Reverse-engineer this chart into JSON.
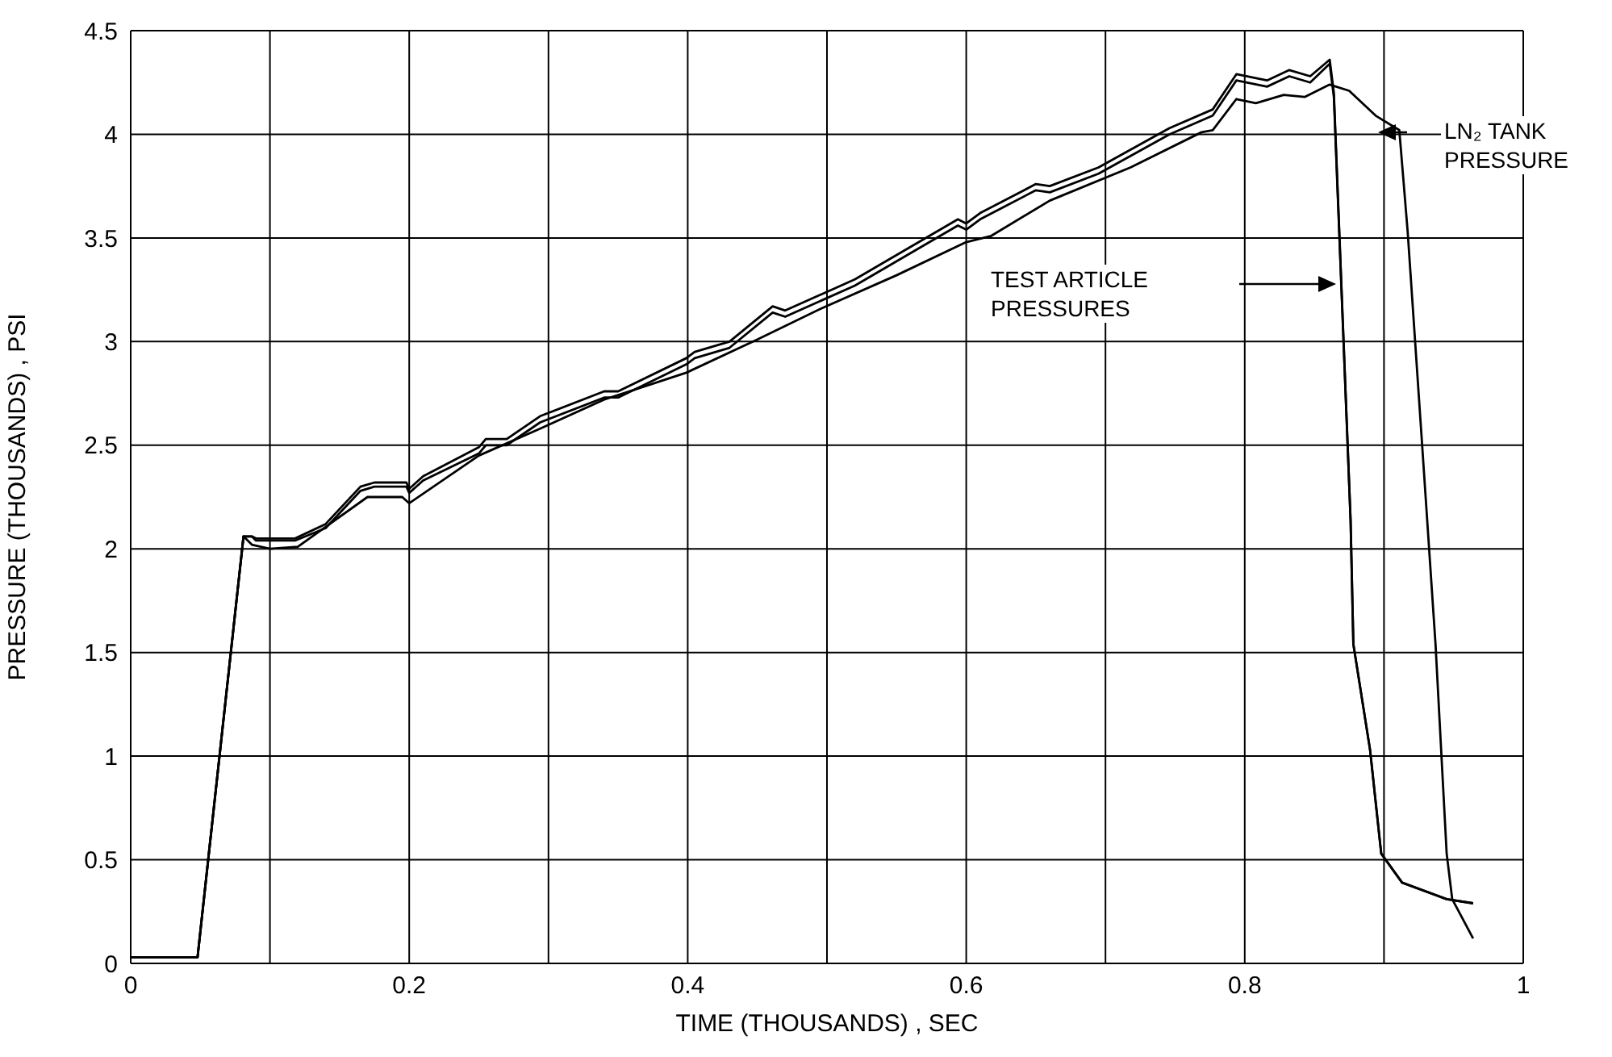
{
  "chart_data": {
    "type": "line",
    "xlabel": "TIME (THOUSANDS) , SEC",
    "ylabel": "PRESSURE (THOUSANDS) , PSI",
    "xlim": [
      0,
      1
    ],
    "ylim": [
      0,
      4.5
    ],
    "xticks": [
      0,
      {
        "value": 0.1,
        "label": null
      },
      0.2,
      {
        "value": 0.3,
        "label": null
      },
      0.4,
      {
        "value": 0.5,
        "label": null
      },
      0.6,
      {
        "value": 0.7,
        "label": null
      },
      0.8,
      {
        "value": 0.9,
        "label": null
      },
      1
    ],
    "yticks": [
      0,
      0.5,
      1,
      1.5,
      2,
      2.5,
      3,
      3.5,
      4,
      4.5
    ],
    "grid": true,
    "marker": "none",
    "line_style": "solid",
    "series": [
      {
        "color": "#000000",
        "x": [
          0,
          0.048,
          0.081,
          0.087,
          0.09,
          0.118,
          0.14,
          0.165,
          0.175,
          0.198,
          0.2,
          0.21,
          0.25,
          0.255,
          0.27,
          0.294,
          0.34,
          0.35,
          0.399,
          0.405,
          0.43,
          0.461,
          0.47,
          0.52,
          0.594,
          0.6,
          0.61,
          0.65,
          0.66,
          0.695,
          0.746,
          0.777,
          0.794,
          0.816,
          0.832,
          0.847,
          0.861,
          0.864,
          0.876,
          0.878,
          0.89,
          0.898,
          0.913,
          0.945,
          0.964
        ],
        "values": [
          0.03,
          0.03,
          2.06,
          2.06,
          2.05,
          2.05,
          2.12,
          2.3,
          2.32,
          2.32,
          2.29,
          2.35,
          2.49,
          2.53,
          2.53,
          2.64,
          2.76,
          2.76,
          2.92,
          2.95,
          3.0,
          3.17,
          3.15,
          3.3,
          3.59,
          3.57,
          3.62,
          3.76,
          3.75,
          3.84,
          4.03,
          4.12,
          4.29,
          4.26,
          4.31,
          4.28,
          4.36,
          4.2,
          2.14,
          1.54,
          1.03,
          0.53,
          0.39,
          0.31,
          0.29
        ]
      },
      {
        "color": "#000000",
        "x": [
          0,
          0.048,
          0.081,
          0.087,
          0.09,
          0.118,
          0.14,
          0.165,
          0.175,
          0.198,
          0.2,
          0.21,
          0.25,
          0.255,
          0.27,
          0.294,
          0.34,
          0.35,
          0.399,
          0.405,
          0.43,
          0.461,
          0.47,
          0.52,
          0.594,
          0.6,
          0.61,
          0.65,
          0.66,
          0.695,
          0.746,
          0.777,
          0.794,
          0.816,
          0.832,
          0.847,
          0.861,
          0.864,
          0.876,
          0.878,
          0.89,
          0.898,
          0.913,
          0.945,
          0.964
        ],
        "values": [
          0.03,
          0.03,
          2.06,
          2.06,
          2.04,
          2.04,
          2.1,
          2.28,
          2.3,
          2.3,
          2.27,
          2.33,
          2.46,
          2.5,
          2.5,
          2.61,
          2.73,
          2.73,
          2.89,
          2.92,
          2.97,
          3.14,
          3.12,
          3.27,
          3.56,
          3.54,
          3.59,
          3.73,
          3.72,
          3.81,
          4.0,
          4.09,
          4.26,
          4.23,
          4.28,
          4.25,
          4.34,
          4.18,
          2.14,
          1.54,
          1.03,
          0.53,
          0.39,
          0.31,
          0.29
        ]
      },
      {
        "color": "#000000",
        "x": [
          0,
          0.048,
          0.081,
          0.087,
          0.1,
          0.12,
          0.17,
          0.195,
          0.2,
          0.25,
          0.294,
          0.34,
          0.399,
          0.45,
          0.496,
          0.55,
          0.6,
          0.618,
          0.66,
          0.718,
          0.769,
          0.777,
          0.794,
          0.808,
          0.828,
          0.843,
          0.861,
          0.875,
          0.894,
          0.911,
          0.917,
          0.927,
          0.937,
          0.945,
          0.949,
          0.964
        ],
        "values": [
          0.03,
          0.03,
          2.06,
          2.02,
          2.0,
          2.01,
          2.25,
          2.25,
          2.22,
          2.45,
          2.58,
          2.72,
          2.85,
          3.01,
          3.16,
          3.32,
          3.48,
          3.51,
          3.68,
          3.84,
          4.01,
          4.02,
          4.17,
          4.15,
          4.19,
          4.18,
          4.24,
          4.21,
          4.09,
          4.02,
          3.53,
          2.54,
          1.54,
          0.53,
          0.31,
          0.12
        ]
      }
    ],
    "annotations": [
      "TEST ARTICLE PRESSURES",
      "LN₂ TANK PRESSURE"
    ]
  }
}
